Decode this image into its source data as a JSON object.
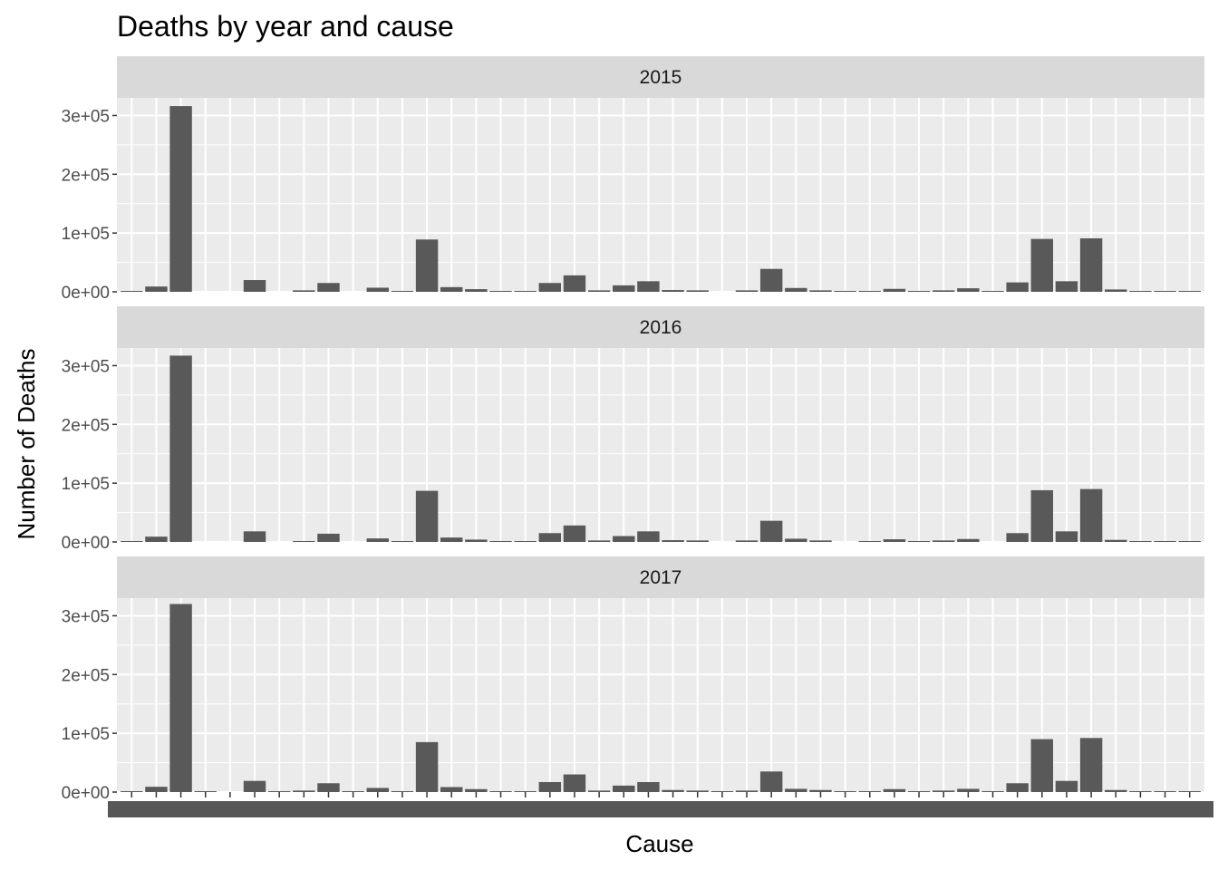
{
  "chart_data": {
    "type": "bar",
    "title": "Deaths by year and cause",
    "xlabel": "Cause",
    "ylabel": "Number of Deaths",
    "facets": [
      "2015",
      "2016",
      "2017"
    ],
    "ylim": [
      0,
      330000
    ],
    "yticks": [
      0,
      100000,
      200000,
      300000
    ],
    "ytick_labels": [
      "0e+00",
      "1e+05",
      "2e+05",
      "3e+05"
    ],
    "grid": true,
    "legend": "none",
    "colors": {
      "bar": "#595959",
      "panel_bg": "#ebebeb",
      "strip_bg": "#d9d9d9",
      "grid": "#ffffff"
    },
    "category_count": 44,
    "note_categories": "x-axis category labels are overplotted and illegible",
    "series": [
      {
        "name": "2015",
        "values": [
          500,
          9000,
          316000,
          0,
          0,
          20000,
          0,
          2500,
          15000,
          0,
          7000,
          1500,
          89000,
          8000,
          4500,
          1000,
          1000,
          15000,
          28000,
          2500,
          11000,
          18000,
          3000,
          2500,
          0,
          2500,
          39000,
          6500,
          2500,
          1000,
          1000,
          5000,
          1500,
          2500,
          6000,
          1500,
          16000,
          90000,
          18000,
          91000,
          4000,
          1000,
          500,
          500
        ]
      },
      {
        "name": "2016",
        "values": [
          500,
          9000,
          317000,
          0,
          0,
          18000,
          0,
          1500,
          14000,
          0,
          6000,
          1500,
          87000,
          7500,
          4000,
          1000,
          1000,
          15000,
          28000,
          2500,
          10000,
          18000,
          3000,
          2500,
          0,
          2500,
          36000,
          5500,
          2500,
          0,
          1000,
          4500,
          1500,
          2500,
          5000,
          0,
          15000,
          88000,
          18000,
          90000,
          3500,
          1000,
          500,
          500
        ]
      },
      {
        "name": "2017",
        "values": [
          500,
          9000,
          320000,
          500,
          0,
          19000,
          500,
          2500,
          15000,
          500,
          7000,
          1500,
          85000,
          8500,
          5000,
          1000,
          1000,
          17000,
          30000,
          2500,
          11000,
          17000,
          3500,
          2500,
          500,
          2500,
          35000,
          5500,
          3500,
          1000,
          1000,
          5000,
          1500,
          2500,
          5500,
          1500,
          15000,
          90000,
          19000,
          92000,
          3500,
          1000,
          500,
          500
        ]
      }
    ]
  }
}
